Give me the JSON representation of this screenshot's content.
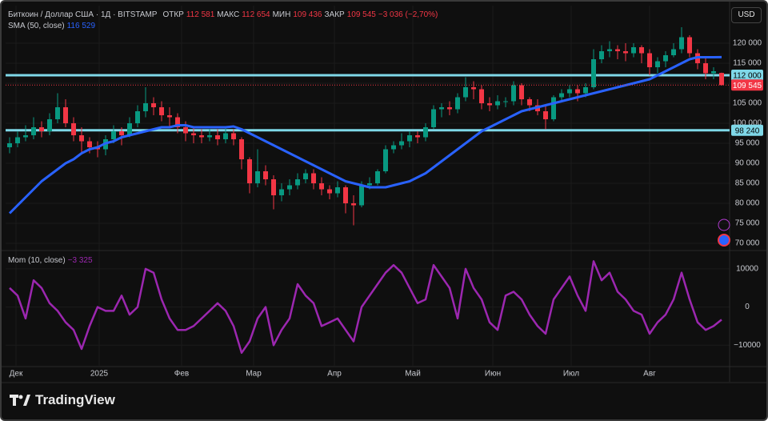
{
  "currency": "USD",
  "brand": "TradingView",
  "chart_data": [
    {
      "type": "candlestick",
      "title": "Биткоин / Доллар США · 1Д · BITSTAMP",
      "ohlc_header": [
        {
          "name": "ОТКР",
          "label": "112 581"
        },
        {
          "name": "МАКС",
          "label": "112 654"
        },
        {
          "name": "МИН",
          "label": "109 436"
        },
        {
          "name": "ЗАКР",
          "label": "109 545"
        }
      ],
      "change_label": "−3 036 (−2,70%)",
      "up_color": "#089981",
      "down_color": "#f23645",
      "xlim": [
        -0.5,
        90
      ],
      "ylim": [
        68400,
        129400
      ],
      "yticks": [
        {
          "value": 70000,
          "label": "70 000"
        },
        {
          "value": 75000,
          "label": "75 000"
        },
        {
          "value": 80000,
          "label": "80 000"
        },
        {
          "value": 85000,
          "label": "85 000"
        },
        {
          "value": 90000,
          "label": "90 000"
        },
        {
          "value": 95000,
          "label": "95 000"
        },
        {
          "value": 100000,
          "label": "100 000"
        },
        {
          "value": 105000,
          "label": "105 000"
        },
        {
          "value": 110000,
          "label": "110 000"
        },
        {
          "value": 115000,
          "label": "115 000"
        },
        {
          "value": 120000,
          "label": "120 000"
        }
      ],
      "grid": true,
      "open": [
        94000,
        95000,
        96500,
        97000,
        99000,
        98000,
        101000,
        104000,
        100000,
        97000,
        95500,
        94000,
        93500,
        96000,
        98000,
        97000,
        100000,
        103000,
        105000,
        104000,
        102000,
        101500,
        99000,
        97500,
        97000,
        96500,
        97000,
        96000,
        97500,
        96000,
        91000,
        85000,
        88000,
        86000,
        82000,
        83500,
        84500,
        86000,
        87500,
        85000,
        83500,
        82500,
        84000,
        80000,
        79500,
        84500,
        85000,
        88000,
        93500,
        94500,
        95500,
        97000,
        96500,
        99000,
        103500,
        104000,
        103500,
        106500,
        109000,
        108500,
        105000,
        104500,
        105500,
        105500,
        109500,
        106000,
        104500,
        103000,
        101000,
        106500,
        107500,
        108500,
        107500,
        109000,
        116000,
        118000,
        118500,
        118000,
        117500,
        119000,
        117500,
        114000,
        115500,
        117000,
        118500,
        121500,
        117500,
        115000,
        112500,
        112581
      ],
      "high": [
        96500,
        98000,
        99500,
        101500,
        100500,
        102500,
        107500,
        106000,
        101500,
        99000,
        96500,
        95500,
        97000,
        99500,
        99000,
        101500,
        104500,
        109000,
        106500,
        105500,
        104000,
        102500,
        100500,
        99000,
        98500,
        98500,
        98500,
        99000,
        98500,
        96500,
        91500,
        93500,
        89500,
        87000,
        85000,
        86000,
        87500,
        88500,
        88500,
        86500,
        84500,
        85500,
        84500,
        82000,
        85500,
        86500,
        88500,
        94500,
        95500,
        97500,
        98000,
        98000,
        100000,
        104500,
        105000,
        105500,
        107500,
        111500,
        110500,
        109500,
        106500,
        107000,
        106500,
        110500,
        110000,
        106500,
        106000,
        104500,
        107000,
        108500,
        109500,
        109500,
        110000,
        118500,
        119500,
        120500,
        119500,
        120000,
        120000,
        119500,
        118500,
        116500,
        118000,
        120000,
        124000,
        122000,
        118500,
        116500,
        114000,
        112654
      ],
      "low": [
        92500,
        94000,
        95500,
        96000,
        96500,
        97000,
        100000,
        99000,
        95500,
        92500,
        92500,
        91500,
        92000,
        95000,
        94500,
        96500,
        99000,
        101500,
        102000,
        100500,
        99000,
        97500,
        95500,
        95000,
        95000,
        95500,
        94500,
        95000,
        94500,
        88500,
        82500,
        84000,
        84500,
        78500,
        80500,
        82000,
        83500,
        85000,
        83500,
        82000,
        81000,
        81500,
        77500,
        74500,
        79000,
        83500,
        84500,
        87500,
        92500,
        93500,
        94000,
        95000,
        95500,
        98500,
        101500,
        102000,
        102500,
        105500,
        106000,
        103500,
        103000,
        103500,
        104000,
        104500,
        104500,
        103000,
        102000,
        98500,
        100500,
        105500,
        106500,
        105500,
        106500,
        108500,
        115000,
        116500,
        116000,
        115500,
        116500,
        115000,
        112000,
        112500,
        114000,
        116500,
        117500,
        116500,
        113500,
        111000,
        111000,
        109436
      ],
      "close": [
        95000,
        96500,
        97000,
        99000,
        98000,
        101000,
        104000,
        100000,
        97000,
        95500,
        94000,
        93500,
        96000,
        98000,
        97000,
        100000,
        103000,
        105000,
        104000,
        102000,
        101500,
        99000,
        97500,
        97000,
        96500,
        97000,
        96000,
        97500,
        96000,
        91000,
        85000,
        88000,
        86000,
        82000,
        83500,
        84500,
        86000,
        87500,
        85000,
        83500,
        82500,
        84000,
        80000,
        79500,
        84500,
        85000,
        88000,
        93500,
        94500,
        95500,
        97000,
        96500,
        99000,
        103500,
        104000,
        103500,
        106500,
        109000,
        108500,
        105000,
        104500,
        105500,
        105500,
        109500,
        106000,
        104500,
        103000,
        101000,
        106500,
        107500,
        108500,
        107500,
        109000,
        116000,
        118000,
        118500,
        118000,
        117500,
        119000,
        117500,
        114000,
        115500,
        117000,
        118500,
        121500,
        117500,
        115000,
        112500,
        113000,
        109545
      ],
      "close_label": "109 545",
      "overlay": {
        "name": "SMA (50, close)",
        "color": "#2962ff",
        "value_label": "116 529",
        "values": [
          77500,
          79500,
          81500,
          83500,
          85500,
          87000,
          88500,
          90000,
          91000,
          92500,
          93500,
          94000,
          95000,
          95500,
          96500,
          97000,
          97500,
          98000,
          98500,
          99000,
          99000,
          99500,
          99500,
          99000,
          99000,
          99000,
          99000,
          99000,
          99200,
          98500,
          97500,
          96500,
          95500,
          94500,
          93500,
          92500,
          91500,
          90500,
          89500,
          88500,
          87500,
          86500,
          85500,
          85000,
          84500,
          84000,
          84000,
          84000,
          84500,
          85000,
          85500,
          86500,
          87500,
          89000,
          90500,
          92000,
          93500,
          95000,
          96500,
          98000,
          99000,
          100000,
          101000,
          102000,
          103000,
          103500,
          104000,
          104500,
          105000,
          105500,
          106000,
          106500,
          107000,
          107500,
          108000,
          108500,
          109000,
          109500,
          110000,
          110500,
          111000,
          112000,
          113000,
          114000,
          115000,
          116000,
          116500,
          116500,
          116500,
          116529
        ]
      },
      "hlines": [
        {
          "value": 112000,
          "label": "112 000"
        },
        {
          "value": 98240,
          "label": "98 240"
        }
      ],
      "hline_color": "#7fd8e8"
    },
    {
      "type": "line",
      "xlim": [
        -0.5,
        90
      ],
      "ylim": [
        -15400,
        14600
      ],
      "yticks": [
        {
          "value": -10000,
          "label": "−10000"
        },
        0,
        10000
      ],
      "grid": true,
      "xticks": [
        {
          "value": 0.8,
          "label": "Дек"
        },
        {
          "value": 11.2,
          "label": "2025"
        },
        {
          "value": 21.5,
          "label": "Фев"
        },
        {
          "value": 30.5,
          "label": "Мар"
        },
        {
          "value": 40.6,
          "label": "Апр"
        },
        {
          "value": 50.4,
          "label": "Май"
        },
        {
          "value": 60.4,
          "label": "Июн"
        },
        {
          "value": 70.2,
          "label": "Июл"
        },
        {
          "value": 80.0,
          "label": "Авг"
        }
      ],
      "series": [
        {
          "name": "Mom (10, close)",
          "color": "#9c27b0",
          "value_label": "−3 325",
          "values": [
            5000,
            3000,
            -3000,
            7000,
            5000,
            1000,
            -1000,
            -4000,
            -6000,
            -11000,
            -5000,
            0,
            -1000,
            -1000,
            3000,
            -2000,
            0,
            10000,
            9000,
            2000,
            -3000,
            -6000,
            -6000,
            -5000,
            -3000,
            -1000,
            1000,
            -1000,
            -5000,
            -12000,
            -9000,
            -3000,
            0,
            -10000,
            -6000,
            -3000,
            6000,
            3000,
            1000,
            -5000,
            -4000,
            -3000,
            -6000,
            -9000,
            0,
            3000,
            6000,
            9000,
            11000,
            9000,
            5000,
            1000,
            2000,
            11000,
            8000,
            5000,
            -3000,
            10000,
            5000,
            2000,
            -4000,
            -6000,
            3000,
            4000,
            2000,
            -2000,
            -5000,
            -7000,
            2000,
            5000,
            8000,
            3000,
            -1000,
            12000,
            7000,
            9000,
            4000,
            2000,
            -1000,
            -2000,
            -7000,
            -4000,
            -2000,
            2000,
            9000,
            2000,
            -4000,
            -6000,
            -5000,
            -3325
          ]
        }
      ]
    }
  ]
}
